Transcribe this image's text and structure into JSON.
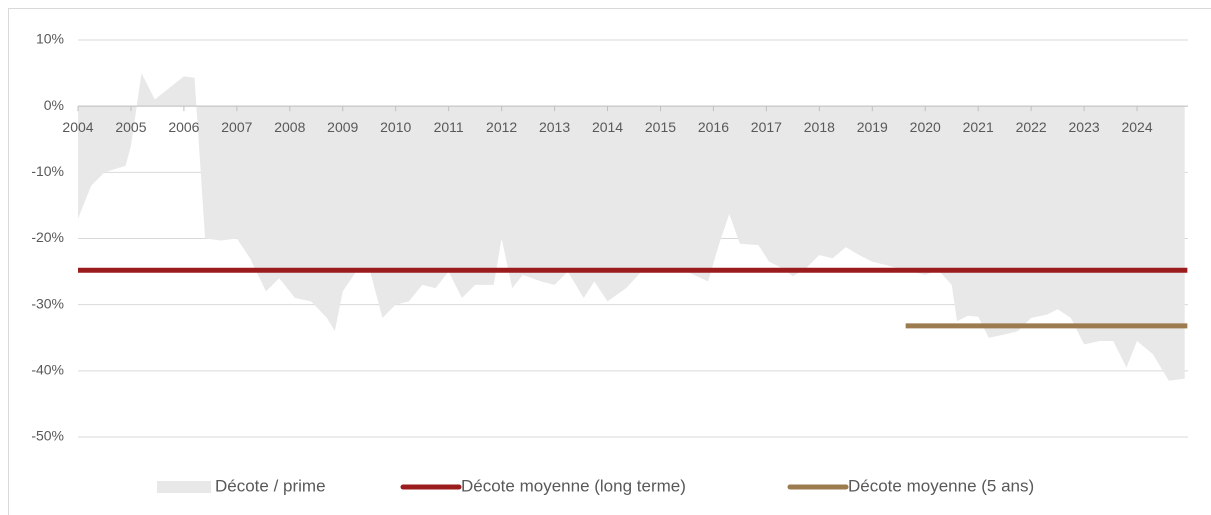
{
  "chart_data": {
    "type": "area",
    "x_label_position": "at zero line",
    "xlim": [
      2004,
      2025
    ],
    "xticks": [
      2004,
      2005,
      2006,
      2007,
      2008,
      2009,
      2010,
      2011,
      2012,
      2013,
      2014,
      2015,
      2016,
      2017,
      2018,
      2019,
      2020,
      2021,
      2022,
      2023,
      2024
    ],
    "ylim": [
      -50,
      10
    ],
    "yticks": [
      {
        "value": 10,
        "label": "10%"
      },
      {
        "value": 0,
        "label": "0%"
      },
      {
        "value": -10,
        "label": "-10%"
      },
      {
        "value": -20,
        "label": "-20%"
      },
      {
        "value": -30,
        "label": "-30%"
      },
      {
        "value": -40,
        "label": "-40%"
      },
      {
        "value": -50,
        "label": "-50%"
      }
    ],
    "grid": true,
    "legend": "bottom",
    "series": [
      {
        "name": "Décote / prime",
        "kind": "area",
        "color": "#e8e8e8",
        "x": [
          2004.0,
          2004.25,
          2004.5,
          2004.9,
          2005.0,
          2005.2,
          2005.45,
          2006.0,
          2006.2,
          2006.4,
          2006.7,
          2007.0,
          2007.25,
          2007.55,
          2007.8,
          2008.1,
          2008.4,
          2008.7,
          2008.85,
          2009.0,
          2009.25,
          2009.5,
          2009.75,
          2010.0,
          2010.25,
          2010.5,
          2010.75,
          2011.0,
          2011.25,
          2011.5,
          2011.85,
          2012.0,
          2012.2,
          2012.4,
          2012.75,
          2013.0,
          2013.25,
          2013.55,
          2013.75,
          2014.0,
          2014.35,
          2014.7,
          2015.0,
          2015.5,
          2015.9,
          2016.1,
          2016.3,
          2016.5,
          2016.85,
          2017.05,
          2017.3,
          2017.5,
          2017.75,
          2018.0,
          2018.25,
          2018.5,
          2018.75,
          2019.0,
          2019.5,
          2019.75,
          2020.0,
          2020.25,
          2020.5,
          2020.6,
          2020.8,
          2021.0,
          2021.2,
          2021.5,
          2021.75,
          2022.0,
          2022.3,
          2022.5,
          2022.75,
          2023.0,
          2023.3,
          2023.55,
          2023.8,
          2024.0,
          2024.3,
          2024.6,
          2024.9
        ],
        "values": [
          -17,
          -12,
          -10,
          -9,
          -6,
          5,
          1,
          4.5,
          4.3,
          -20,
          -20.3,
          -20,
          -23,
          -28,
          -26,
          -29,
          -29.5,
          -32,
          -34,
          -28,
          -25,
          -24.5,
          -32,
          -30,
          -29.5,
          -27,
          -27.5,
          -25,
          -29,
          -27,
          -27,
          -20,
          -27.5,
          -25.5,
          -26.5,
          -27,
          -25,
          -29,
          -26.5,
          -29.5,
          -27.5,
          -24.5,
          -24.8,
          -25,
          -26.5,
          -21,
          -16.3,
          -20.8,
          -21,
          -23.5,
          -24.5,
          -25.7,
          -24.5,
          -22.5,
          -23,
          -21.3,
          -22.5,
          -23.5,
          -24.5,
          -25,
          -25.5,
          -24.8,
          -27,
          -32.5,
          -31.7,
          -31.8,
          -35,
          -34.5,
          -34,
          -32,
          -31.5,
          -30.7,
          -32,
          -36,
          -35.5,
          -35.5,
          -39.5,
          -35.5,
          -37.5,
          -41.5,
          -41.2
        ]
      },
      {
        "name": "Décote moyenne (long terme)",
        "kind": "line",
        "color": "#9b1c1c",
        "x": [
          2004.0,
          2024.95
        ],
        "values": [
          -24.8,
          -24.8
        ]
      },
      {
        "name": "Décote moyenne (5 ans)",
        "kind": "line",
        "color": "#9c7b4f",
        "x": [
          2019.63,
          2024.95
        ],
        "values": [
          -33.2,
          -33.2
        ]
      }
    ]
  }
}
